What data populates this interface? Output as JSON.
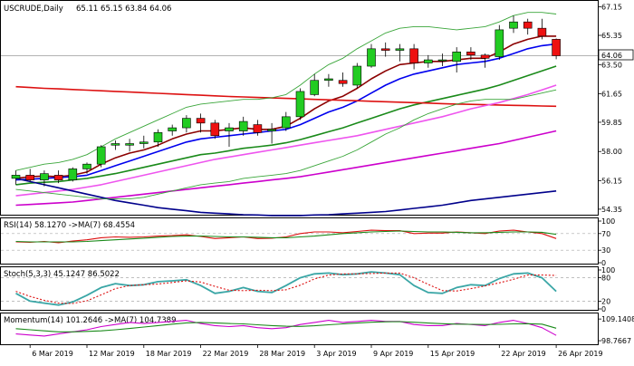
{
  "chart_data": [
    {
      "type": "candlestick",
      "title": "USCRUDE,Daily",
      "ohlc_label": "65.11 65.15 63.84 64.06",
      "current_price": "64.06",
      "y_ticks": [
        "67.15",
        "65.35",
        "63.50",
        "61.65",
        "59.85",
        "58.00",
        "56.15",
        "54.35"
      ],
      "ylim": [
        54.0,
        67.3
      ],
      "x_labels": [
        "6 Mar 2019",
        "12 Mar 2019",
        "18 Mar 2019",
        "22 Mar 2019",
        "28 Mar 2019",
        "3 Apr 2019",
        "9 Apr 2019",
        "15 Apr 2019",
        "22 Apr 2019",
        "26 Apr 2019"
      ],
      "candles": [
        {
          "date": "2019-03-05",
          "o": 56.3,
          "h": 56.8,
          "l": 55.9,
          "c": 56.5
        },
        {
          "date": "2019-03-06",
          "o": 56.5,
          "h": 56.9,
          "l": 56.1,
          "c": 56.2
        },
        {
          "date": "2019-03-07",
          "o": 56.2,
          "h": 56.8,
          "l": 55.8,
          "c": 56.6
        },
        {
          "date": "2019-03-08",
          "o": 56.5,
          "h": 56.8,
          "l": 56.0,
          "c": 56.2
        },
        {
          "date": "2019-03-11",
          "o": 56.2,
          "h": 57.0,
          "l": 56.1,
          "c": 56.9
        },
        {
          "date": "2019-03-12",
          "o": 56.9,
          "h": 57.3,
          "l": 56.6,
          "c": 57.2
        },
        {
          "date": "2019-03-13",
          "o": 57.2,
          "h": 58.4,
          "l": 57.0,
          "c": 58.3
        },
        {
          "date": "2019-03-14",
          "o": 58.4,
          "h": 58.7,
          "l": 58.1,
          "c": 58.5
        },
        {
          "date": "2019-03-15",
          "o": 58.4,
          "h": 58.8,
          "l": 58.0,
          "c": 58.5
        },
        {
          "date": "2019-03-18",
          "o": 58.5,
          "h": 59.0,
          "l": 58.2,
          "c": 58.6
        },
        {
          "date": "2019-03-19",
          "o": 58.6,
          "h": 59.4,
          "l": 58.3,
          "c": 59.2
        },
        {
          "date": "2019-03-20",
          "o": 59.3,
          "h": 59.7,
          "l": 59.0,
          "c": 59.5
        },
        {
          "date": "2019-03-21",
          "o": 59.5,
          "h": 60.3,
          "l": 59.2,
          "c": 60.1
        },
        {
          "date": "2019-03-22",
          "o": 60.1,
          "h": 60.4,
          "l": 59.2,
          "c": 59.8
        },
        {
          "date": "2019-03-25",
          "o": 59.8,
          "h": 60.0,
          "l": 58.8,
          "c": 59.0
        },
        {
          "date": "2019-03-26",
          "o": 59.3,
          "h": 59.8,
          "l": 58.3,
          "c": 59.5
        },
        {
          "date": "2019-03-27",
          "o": 59.3,
          "h": 60.2,
          "l": 59.0,
          "c": 59.9
        },
        {
          "date": "2019-03-28",
          "o": 59.7,
          "h": 60.0,
          "l": 59.0,
          "c": 59.2
        },
        {
          "date": "2019-03-29",
          "o": 59.3,
          "h": 59.8,
          "l": 58.5,
          "c": 59.4
        },
        {
          "date": "2019-04-01",
          "o": 59.5,
          "h": 60.5,
          "l": 59.3,
          "c": 60.2
        },
        {
          "date": "2019-04-02",
          "o": 60.2,
          "h": 62.0,
          "l": 60.0,
          "c": 61.8
        },
        {
          "date": "2019-04-03",
          "o": 61.6,
          "h": 62.9,
          "l": 61.5,
          "c": 62.5
        },
        {
          "date": "2019-04-04",
          "o": 62.5,
          "h": 62.9,
          "l": 62.1,
          "c": 62.6
        },
        {
          "date": "2019-04-05",
          "o": 62.5,
          "h": 63.0,
          "l": 62.1,
          "c": 62.3
        },
        {
          "date": "2019-04-08",
          "o": 62.2,
          "h": 63.6,
          "l": 62.0,
          "c": 63.4
        },
        {
          "date": "2019-04-09",
          "o": 63.4,
          "h": 64.8,
          "l": 63.3,
          "c": 64.5
        },
        {
          "date": "2019-04-10",
          "o": 64.5,
          "h": 64.9,
          "l": 64.0,
          "c": 64.4
        },
        {
          "date": "2019-04-11",
          "o": 64.4,
          "h": 64.8,
          "l": 63.7,
          "c": 64.5
        },
        {
          "date": "2019-04-12",
          "o": 64.5,
          "h": 64.8,
          "l": 63.2,
          "c": 63.6
        },
        {
          "date": "2019-04-15",
          "o": 63.6,
          "h": 64.1,
          "l": 63.3,
          "c": 63.8
        },
        {
          "date": "2019-04-16",
          "o": 63.8,
          "h": 64.2,
          "l": 63.4,
          "c": 63.8
        },
        {
          "date": "2019-04-17",
          "o": 63.7,
          "h": 64.6,
          "l": 63.0,
          "c": 64.3
        },
        {
          "date": "2019-04-18",
          "o": 64.3,
          "h": 64.6,
          "l": 63.8,
          "c": 64.1
        },
        {
          "date": "2019-04-19",
          "o": 64.1,
          "h": 64.2,
          "l": 63.3,
          "c": 63.9
        },
        {
          "date": "2019-04-22",
          "o": 64.0,
          "h": 66.0,
          "l": 63.8,
          "c": 65.7
        },
        {
          "date": "2019-04-23",
          "o": 65.8,
          "h": 66.6,
          "l": 65.5,
          "c": 66.2
        },
        {
          "date": "2019-04-24",
          "o": 66.2,
          "h": 66.4,
          "l": 65.4,
          "c": 65.8
        },
        {
          "date": "2019-04-25",
          "o": 65.8,
          "h": 66.4,
          "l": 65.1,
          "c": 65.3
        },
        {
          "date": "2019-04-26",
          "o": 65.1,
          "h": 65.15,
          "l": 63.84,
          "c": 64.06
        }
      ],
      "overlays": [
        {
          "color": "#8b0000",
          "values": [
            56.3,
            56.4,
            56.45,
            56.4,
            56.5,
            56.7,
            57.2,
            57.6,
            57.9,
            58.1,
            58.4,
            58.8,
            59.1,
            59.3,
            59.3,
            59.4,
            59.5,
            59.4,
            59.4,
            59.6,
            60.1,
            60.7,
            61.2,
            61.5,
            62.0,
            62.6,
            63.1,
            63.5,
            63.6,
            63.7,
            63.7,
            63.8,
            63.9,
            63.9,
            64.3,
            64.8,
            65.1,
            65.3,
            65.3
          ]
        },
        {
          "color": "#0000ee",
          "values": [
            56.2,
            56.25,
            56.3,
            56.35,
            56.4,
            56.5,
            56.8,
            57.1,
            57.4,
            57.7,
            58.0,
            58.3,
            58.6,
            58.8,
            58.9,
            59.0,
            59.1,
            59.2,
            59.3,
            59.4,
            59.7,
            60.1,
            60.5,
            60.8,
            61.2,
            61.7,
            62.2,
            62.6,
            62.9,
            63.1,
            63.3,
            63.5,
            63.6,
            63.7,
            63.9,
            64.2,
            64.5,
            64.7,
            64.8
          ]
        },
        {
          "color": "#1a8a1a",
          "values": [
            55.9,
            56.0,
            56.05,
            56.1,
            56.2,
            56.3,
            56.45,
            56.6,
            56.8,
            57.0,
            57.2,
            57.4,
            57.6,
            57.8,
            57.9,
            58.05,
            58.2,
            58.3,
            58.4,
            58.55,
            58.75,
            59.0,
            59.25,
            59.5,
            59.8,
            60.1,
            60.4,
            60.7,
            60.95,
            61.15,
            61.35,
            61.55,
            61.75,
            61.95,
            62.2,
            62.5,
            62.8,
            63.1,
            63.4
          ]
        },
        {
          "color": "#dd1111",
          "values": [
            62.1,
            62.05,
            62.0,
            61.96,
            61.92,
            61.88,
            61.84,
            61.8,
            61.76,
            61.72,
            61.68,
            61.64,
            61.6,
            61.56,
            61.52,
            61.48,
            61.45,
            61.42,
            61.39,
            61.36,
            61.33,
            61.3,
            61.27,
            61.24,
            61.21,
            61.18,
            61.15,
            61.12,
            61.09,
            61.06,
            61.03,
            61.0,
            60.98,
            60.96,
            60.94,
            60.92,
            60.9,
            60.88,
            60.86
          ]
        },
        {
          "color": "#ee55ee",
          "values": [
            55.2,
            55.3,
            55.4,
            55.5,
            55.6,
            55.75,
            55.9,
            56.1,
            56.3,
            56.5,
            56.7,
            56.9,
            57.1,
            57.3,
            57.5,
            57.65,
            57.8,
            57.95,
            58.1,
            58.25,
            58.4,
            58.55,
            58.7,
            58.85,
            59.0,
            59.2,
            59.4,
            59.6,
            59.8,
            60.0,
            60.2,
            60.45,
            60.7,
            60.9,
            61.1,
            61.35,
            61.6,
            61.9,
            62.2
          ]
        },
        {
          "color": "#cc00cc",
          "values": [
            54.6,
            54.65,
            54.7,
            54.75,
            54.8,
            54.9,
            55.0,
            55.1,
            55.2,
            55.3,
            55.4,
            55.5,
            55.6,
            55.7,
            55.8,
            55.9,
            56.0,
            56.1,
            56.2,
            56.3,
            56.4,
            56.55,
            56.7,
            56.85,
            57.0,
            57.15,
            57.3,
            57.45,
            57.6,
            57.75,
            57.9,
            58.05,
            58.2,
            58.35,
            58.5,
            58.7,
            58.9,
            59.1,
            59.3
          ]
        },
        {
          "color": "#00008b",
          "values": [
            56.3,
            56.1,
            55.9,
            55.7,
            55.5,
            55.3,
            55.1,
            54.9,
            54.75,
            54.6,
            54.45,
            54.35,
            54.25,
            54.15,
            54.1,
            54.05,
            54.0,
            53.98,
            53.95,
            53.95,
            53.95,
            53.98,
            54.0,
            54.05,
            54.1,
            54.15,
            54.2,
            54.3,
            54.4,
            54.5,
            54.6,
            54.75,
            54.9,
            55.0,
            55.1,
            55.2,
            55.3,
            55.4,
            55.5
          ]
        },
        {
          "color": "#3aa63a",
          "values": [
            56.8,
            57.0,
            57.2,
            57.3,
            57.5,
            57.8,
            58.3,
            58.8,
            59.2,
            59.6,
            60.0,
            60.4,
            60.8,
            61.0,
            61.1,
            61.2,
            61.3,
            61.3,
            61.4,
            61.6,
            62.2,
            62.9,
            63.5,
            63.9,
            64.5,
            65.0,
            65.5,
            65.8,
            65.9,
            65.9,
            65.8,
            65.7,
            65.8,
            65.9,
            66.2,
            66.6,
            66.8,
            66.8,
            66.7
          ]
        },
        {
          "color": "#3aa63a",
          "values": [
            55.6,
            55.5,
            55.4,
            55.3,
            55.2,
            55.1,
            55.0,
            55.0,
            55.0,
            55.1,
            55.3,
            55.5,
            55.7,
            55.9,
            56.0,
            56.1,
            56.3,
            56.4,
            56.5,
            56.6,
            56.8,
            57.1,
            57.4,
            57.7,
            58.1,
            58.6,
            59.1,
            59.5,
            60.0,
            60.4,
            60.7,
            61.0,
            61.2,
            61.3,
            61.3,
            61.3,
            61.5,
            61.7,
            61.9
          ]
        }
      ]
    },
    {
      "type": "line",
      "title": "RSI(14) 58.1270 ->MA(7) 68.4554",
      "y_ticks": [
        "100",
        "70",
        "30",
        "0"
      ],
      "ylim": [
        0,
        100
      ],
      "series": [
        {
          "name": "RSI(14)",
          "color": "#dd1111",
          "values": [
            50,
            49,
            51,
            48,
            52,
            55,
            60,
            62,
            61,
            62,
            64,
            65,
            67,
            63,
            58,
            60,
            62,
            58,
            59,
            62,
            70,
            74,
            74,
            72,
            75,
            78,
            77,
            77,
            70,
            71,
            71,
            74,
            72,
            70,
            76,
            78,
            74,
            70,
            58
          ]
        },
        {
          "name": "MA(7)",
          "color": "#1a8a1a",
          "values": [
            51,
            50,
            50,
            50,
            50,
            51,
            53,
            55,
            57,
            59,
            61,
            63,
            64,
            64,
            63,
            62,
            62,
            61,
            60,
            60,
            62,
            64,
            67,
            70,
            72,
            74,
            75,
            76,
            75,
            74,
            74,
            73,
            72,
            72,
            73,
            74,
            74,
            73,
            68
          ]
        }
      ]
    },
    {
      "type": "line",
      "title": "Stoch(5,3,3) 45.1247 86.5022",
      "y_ticks": [
        "100",
        "80",
        "20",
        "0"
      ],
      "ylim": [
        0,
        100
      ],
      "series": [
        {
          "name": "Stoch",
          "color": "#3aa6a6",
          "values": [
            40,
            20,
            15,
            10,
            18,
            35,
            55,
            65,
            60,
            62,
            70,
            72,
            75,
            60,
            40,
            45,
            55,
            45,
            42,
            60,
            80,
            90,
            92,
            88,
            90,
            95,
            92,
            88,
            60,
            42,
            40,
            55,
            62,
            60,
            78,
            90,
            92,
            80,
            45
          ]
        },
        {
          "name": "Signal",
          "color": "#dd1111",
          "values": [
            45,
            32,
            22,
            15,
            14,
            21,
            36,
            52,
            60,
            62,
            64,
            68,
            72,
            69,
            58,
            48,
            47,
            48,
            47,
            49,
            61,
            77,
            87,
            90,
            90,
            91,
            92,
            92,
            80,
            63,
            47,
            46,
            52,
            59,
            67,
            76,
            87,
            87,
            86
          ]
        }
      ]
    },
    {
      "type": "line",
      "title": "Momentum(14) 101.2646 ->MA(7) 104.7389",
      "y_ticks": [
        "109.1408",
        "98.7667"
      ],
      "ylim": [
        97.5,
        110.5
      ],
      "x_labels": [
        "6 Mar 2019",
        "12 Mar 2019",
        "18 Mar 2019",
        "22 Mar 2019",
        "28 Mar 2019",
        "3 Apr 2019",
        "9 Apr 2019",
        "15 Apr 2019",
        "22 Apr 2019",
        "26 Apr 2019"
      ],
      "series": [
        {
          "name": "Momentum(14)",
          "color": "#cc00cc",
          "values": [
            102,
            101.5,
            101,
            102,
            103,
            104,
            105.5,
            106.5,
            107.5,
            107,
            107.5,
            108,
            108.5,
            107,
            106,
            105.5,
            106,
            105,
            104.5,
            105,
            106.5,
            107.5,
            108.5,
            107.5,
            108,
            108.5,
            108,
            108,
            106.5,
            106,
            106,
            107,
            106.5,
            106,
            107.5,
            108.5,
            107,
            105,
            101.3
          ]
        },
        {
          "name": "MA(7)",
          "color": "#1a8a1a",
          "values": [
            104.5,
            104,
            103.5,
            103,
            103,
            103.2,
            103.5,
            104,
            104.6,
            105.3,
            106,
            106.7,
            107.3,
            107.5,
            107.3,
            107,
            106.8,
            106.4,
            106,
            105.7,
            105.6,
            105.9,
            106.4,
            106.8,
            107.2,
            107.6,
            107.8,
            107.9,
            107.6,
            107.2,
            106.9,
            106.7,
            106.6,
            106.5,
            106.6,
            106.8,
            106.9,
            106.7,
            104.74
          ]
        }
      ]
    }
  ]
}
